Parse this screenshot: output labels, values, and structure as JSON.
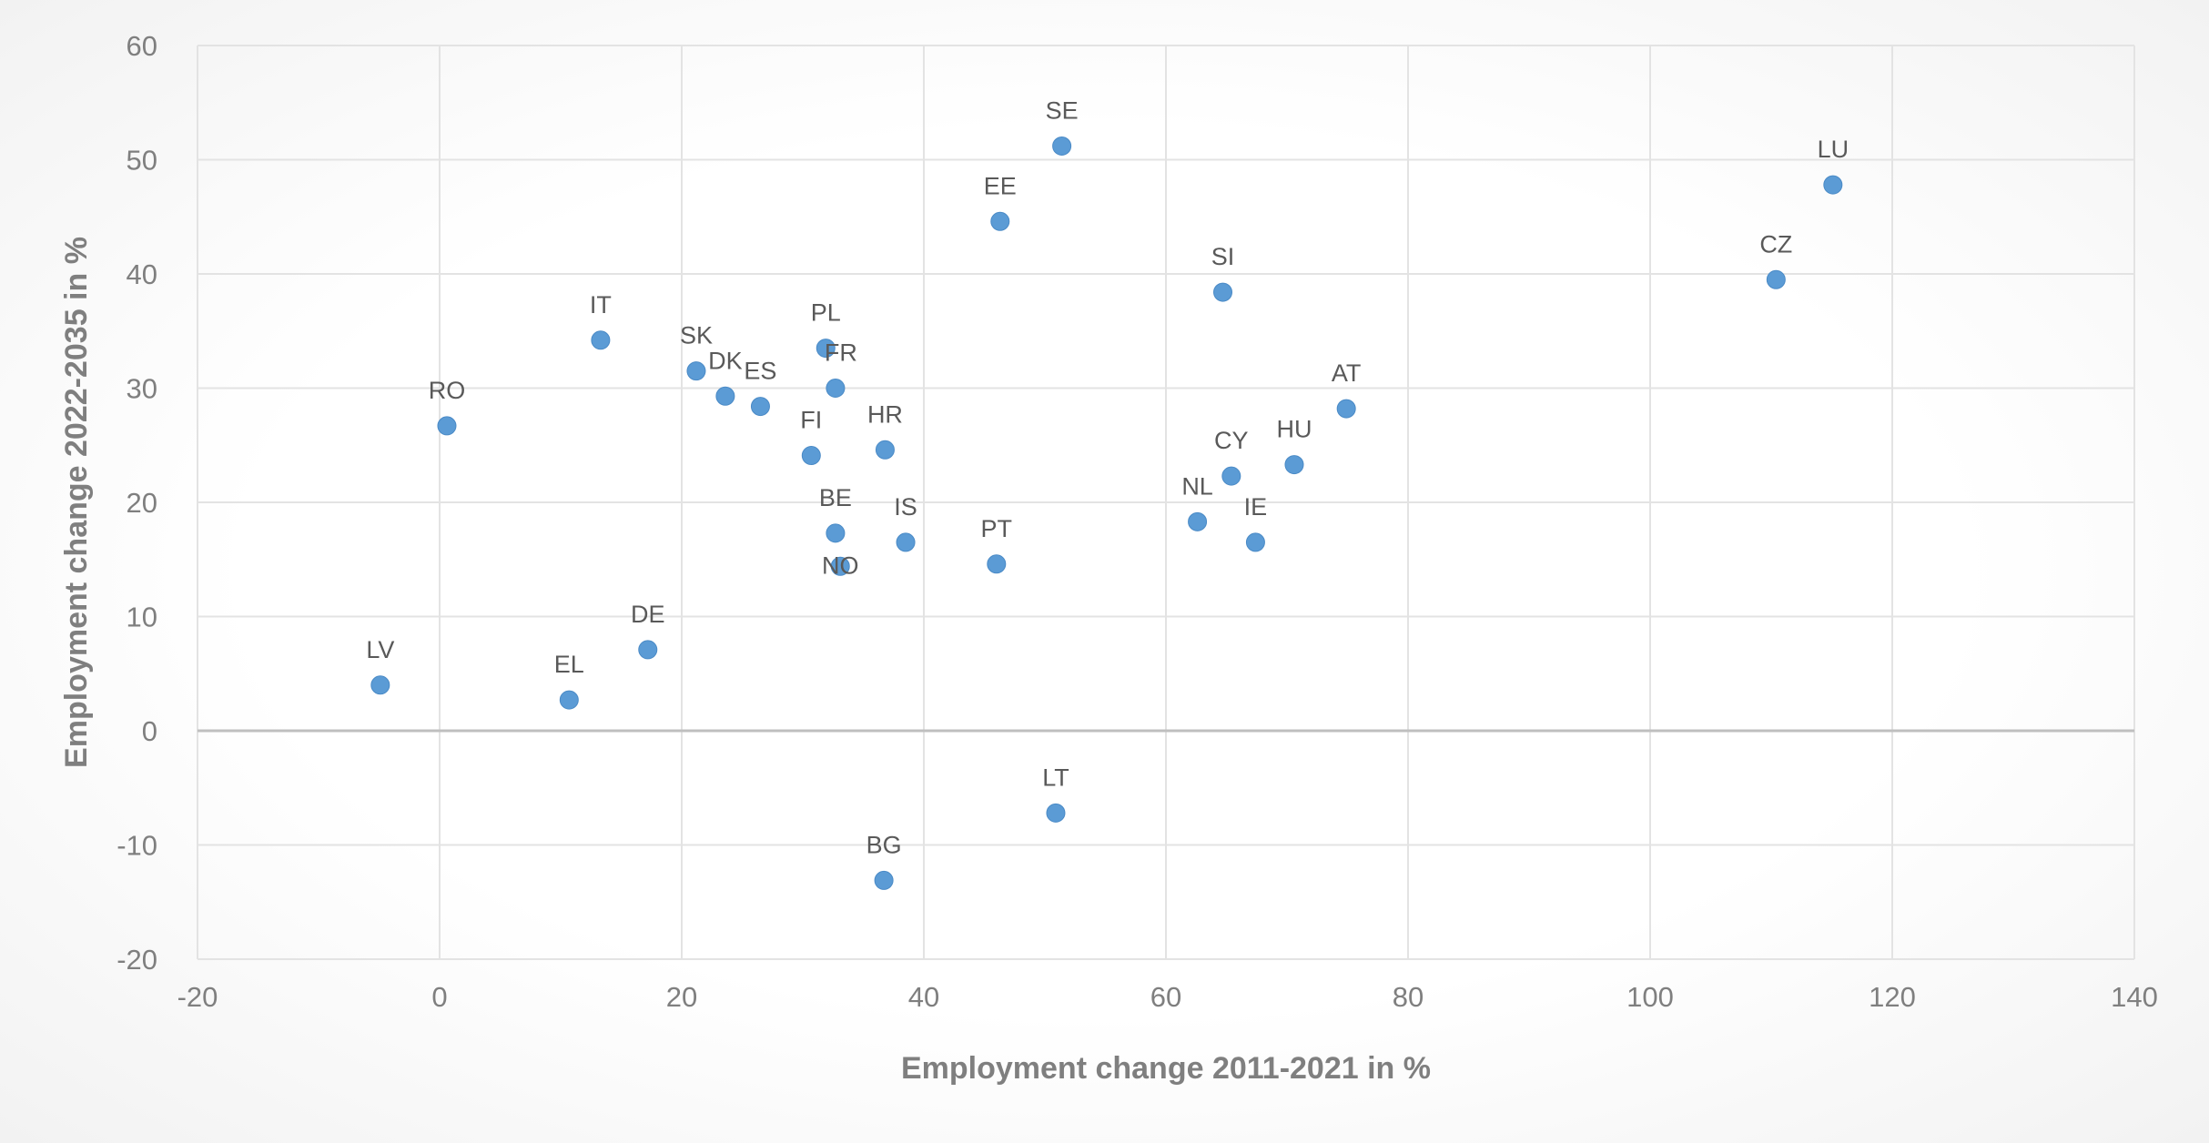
{
  "chart_data": {
    "type": "scatter",
    "title": "",
    "xlabel": "Employment change 2011-2021 in %",
    "ylabel": "Employment change 2022-2035 in %",
    "xlim": [
      -20,
      140
    ],
    "ylim": [
      -20,
      60
    ],
    "xticks": [
      -20,
      0,
      20,
      40,
      60,
      80,
      100,
      120,
      140
    ],
    "yticks": [
      -20,
      -10,
      0,
      10,
      20,
      30,
      40,
      50,
      60
    ],
    "grid": true,
    "color": "#5B9BD5",
    "points": [
      {
        "label": "SE",
        "x": 51.4,
        "y": 51.2
      },
      {
        "label": "EE",
        "x": 46.3,
        "y": 44.6
      },
      {
        "label": "LU",
        "x": 115.1,
        "y": 47.8
      },
      {
        "label": "CZ",
        "x": 110.4,
        "y": 39.5
      },
      {
        "label": "SI",
        "x": 64.7,
        "y": 38.4
      },
      {
        "label": "IT",
        "x": 13.3,
        "y": 34.2
      },
      {
        "label": "PL",
        "x": 31.9,
        "y": 33.5
      },
      {
        "label": "SK",
        "x": 21.2,
        "y": 31.5
      },
      {
        "label": "DK",
        "x": 23.6,
        "y": 29.3
      },
      {
        "label": "FR",
        "x": 32.7,
        "y": 30.0
      },
      {
        "label": "ES",
        "x": 26.5,
        "y": 28.4
      },
      {
        "label": "AT",
        "x": 74.9,
        "y": 28.2
      },
      {
        "label": "RO",
        "x": 0.6,
        "y": 26.7
      },
      {
        "label": "FI",
        "x": 30.7,
        "y": 24.1
      },
      {
        "label": "HR",
        "x": 36.8,
        "y": 24.6
      },
      {
        "label": "HU",
        "x": 70.6,
        "y": 23.3
      },
      {
        "label": "CY",
        "x": 65.4,
        "y": 22.3
      },
      {
        "label": "NL",
        "x": 62.6,
        "y": 18.3
      },
      {
        "label": "BE",
        "x": 32.7,
        "y": 17.3
      },
      {
        "label": "IS",
        "x": 38.5,
        "y": 16.5
      },
      {
        "label": "IE",
        "x": 67.4,
        "y": 16.5
      },
      {
        "label": "NO",
        "x": 33.1,
        "y": 14.4
      },
      {
        "label": "PT",
        "x": 46.0,
        "y": 14.6
      },
      {
        "label": "DE",
        "x": 17.2,
        "y": 7.1
      },
      {
        "label": "LV",
        "x": -4.9,
        "y": 4.0
      },
      {
        "label": "EL",
        "x": 10.7,
        "y": 2.7
      },
      {
        "label": "LT",
        "x": 50.9,
        "y": -7.2
      },
      {
        "label": "BG",
        "x": 36.7,
        "y": -13.1
      }
    ]
  }
}
